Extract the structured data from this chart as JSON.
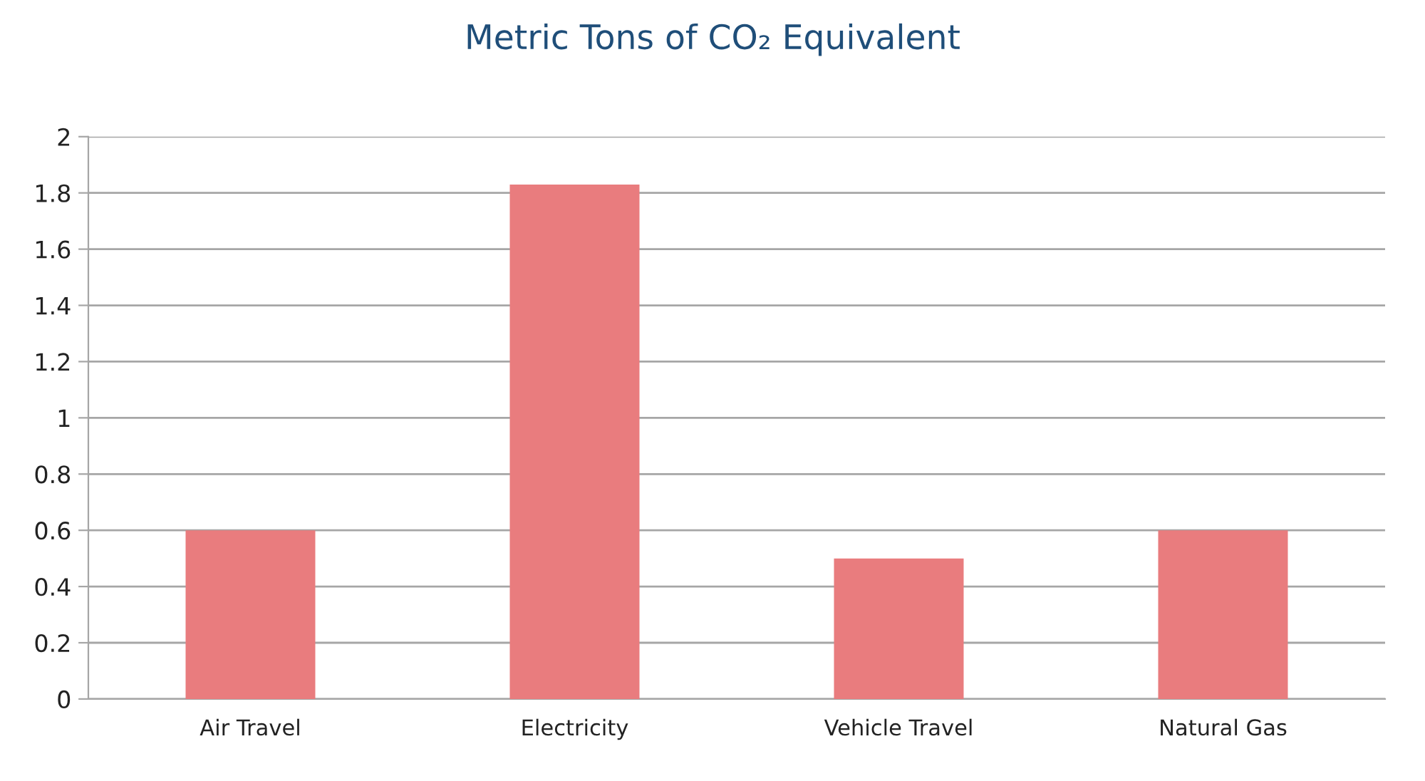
{
  "chart_data": {
    "type": "bar",
    "title": "Metric Tons of CO₂ Equivalent",
    "categories": [
      "Air Travel",
      "Electricity",
      "Vehicle Travel",
      "Natural Gas"
    ],
    "values": [
      0.6,
      1.83,
      0.5,
      0.6
    ],
    "color": "#e97c7e",
    "ylim": [
      0,
      2
    ],
    "yticks": [
      0,
      0.2,
      0.4,
      0.6,
      0.8,
      1,
      1.2,
      1.4,
      1.6,
      1.8,
      2
    ],
    "grid": "y",
    "legend": false
  }
}
